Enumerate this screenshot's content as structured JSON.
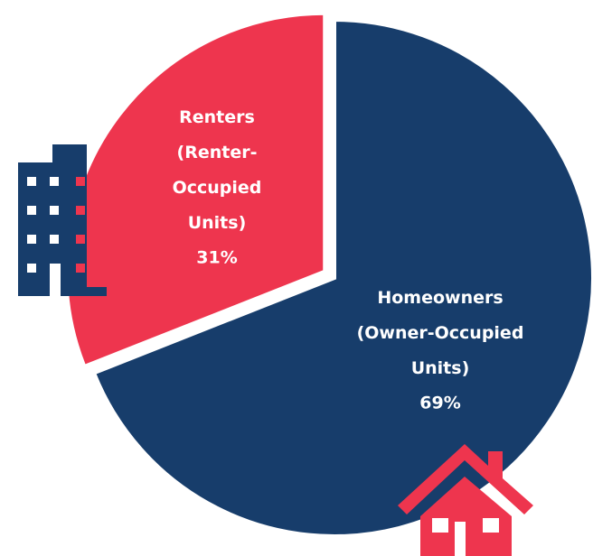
{
  "chart_data": {
    "type": "pie",
    "categories": [
      "Homeowners (Owner-Occupied Units)",
      "Renters (Renter-Occupied Units)"
    ],
    "values": [
      69,
      31
    ],
    "value_labels": [
      "69%",
      "31%"
    ],
    "colors": [
      "#173d6b",
      "#ee354e"
    ]
  }
}
